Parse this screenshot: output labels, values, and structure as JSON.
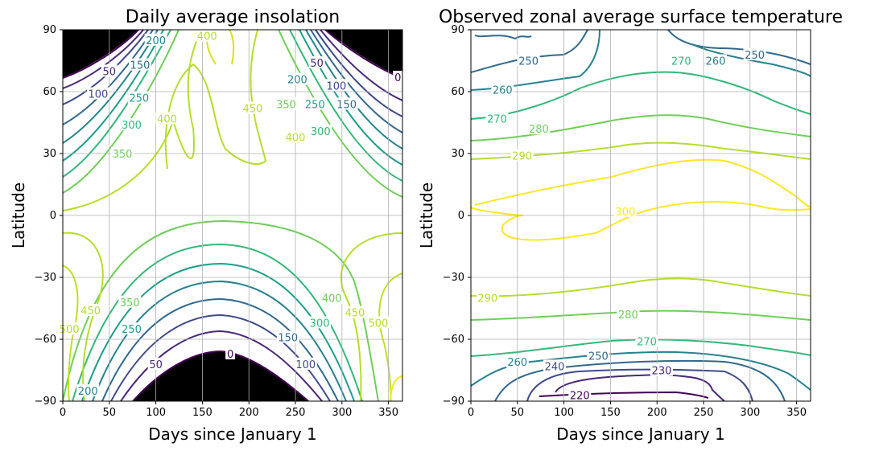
{
  "chart_data": [
    {
      "type": "contour",
      "title": "Daily average insolation",
      "xlabel": "Days since January 1",
      "ylabel": "Latitude",
      "xlim": [
        0,
        365
      ],
      "ylim": [
        -90,
        90
      ],
      "xticks": [
        "0",
        "50",
        "100",
        "150",
        "200",
        "250",
        "300",
        "350"
      ],
      "yticks": [
        "90",
        "60",
        "30",
        "0",
        "−30",
        "−60",
        "−90"
      ],
      "grid": true,
      "polar_night_fill": "#000000",
      "colormap": "viridis",
      "levels": [
        0,
        50,
        100,
        150,
        200,
        250,
        300,
        350,
        400,
        450,
        500
      ],
      "contour_labels": [
        {
          "text": "0",
          "x": 360,
          "y": 67,
          "color": "#440154"
        },
        {
          "text": "50",
          "x": 50,
          "y": 70,
          "color": "#482878"
        },
        {
          "text": "100",
          "x": 38,
          "y": 59,
          "color": "#3e4989"
        },
        {
          "text": "150",
          "x": 83,
          "y": 73,
          "color": "#31688e"
        },
        {
          "text": "200",
          "x": 100,
          "y": 85,
          "color": "#26828e"
        },
        {
          "text": "250",
          "x": 82,
          "y": 57,
          "color": "#1f9e89"
        },
        {
          "text": "300",
          "x": 74,
          "y": 44,
          "color": "#35b779"
        },
        {
          "text": "350",
          "x": 64,
          "y": 30,
          "color": "#6ece58"
        },
        {
          "text": "400",
          "x": 112,
          "y": 47,
          "color": "#b5de2b"
        },
        {
          "text": "400",
          "x": 155,
          "y": 87,
          "color": "#b5de2b"
        },
        {
          "text": "450",
          "x": 204,
          "y": 52,
          "color": "#b5de2b"
        },
        {
          "text": "50",
          "x": 273,
          "y": 74,
          "color": "#482878"
        },
        {
          "text": "100",
          "x": 294,
          "y": 63,
          "color": "#3e4989"
        },
        {
          "text": "150",
          "x": 305,
          "y": 54,
          "color": "#31688e"
        },
        {
          "text": "200",
          "x": 252,
          "y": 66,
          "color": "#26828e"
        },
        {
          "text": "250",
          "x": 271,
          "y": 54,
          "color": "#1f9e89"
        },
        {
          "text": "300",
          "x": 277,
          "y": 41,
          "color": "#35b779"
        },
        {
          "text": "350",
          "x": 240,
          "y": 54,
          "color": "#6ece58"
        },
        {
          "text": "400",
          "x": 250,
          "y": 38,
          "color": "#b5de2b"
        },
        {
          "text": "500",
          "x": 7,
          "y": -55,
          "color": "#b5de2b"
        },
        {
          "text": "450",
          "x": 30,
          "y": -46,
          "color": "#b5de2b"
        },
        {
          "text": "350",
          "x": 72,
          "y": -42,
          "color": "#6ece58"
        },
        {
          "text": "250",
          "x": 74,
          "y": -55,
          "color": "#1f9e89"
        },
        {
          "text": "50",
          "x": 100,
          "y": -72,
          "color": "#482878"
        },
        {
          "text": "0",
          "x": 180,
          "y": -67,
          "color": "#440154"
        },
        {
          "text": "200",
          "x": 27,
          "y": -85,
          "color": "#26828e"
        },
        {
          "text": "400",
          "x": 289,
          "y": -40,
          "color": "#6ece58"
        },
        {
          "text": "450",
          "x": 314,
          "y": -47,
          "color": "#b5de2b"
        },
        {
          "text": "500",
          "x": 339,
          "y": -52,
          "color": "#b5de2b"
        },
        {
          "text": "300",
          "x": 276,
          "y": -52,
          "color": "#35b779"
        },
        {
          "text": "150",
          "x": 242,
          "y": -59,
          "color": "#31688e"
        },
        {
          "text": "100",
          "x": 261,
          "y": -72,
          "color": "#3e4989"
        }
      ]
    },
    {
      "type": "contour",
      "title": "Observed zonal average surface temperature",
      "xlabel": "Days since January 1",
      "ylabel": "Latitude",
      "xlim": [
        0,
        365
      ],
      "ylim": [
        -90,
        90
      ],
      "xticks": [
        "0",
        "50",
        "100",
        "150",
        "200",
        "250",
        "300",
        "350"
      ],
      "yticks": [
        "90",
        "60",
        "30",
        "0",
        "−30",
        "−60",
        "−90"
      ],
      "grid": true,
      "colormap": "viridis",
      "levels": [
        220,
        230,
        240,
        250,
        260,
        270,
        280,
        290,
        300
      ],
      "contour_labels": [
        {
          "text": "250",
          "x": 62,
          "y": 75,
          "color": "#31688e"
        },
        {
          "text": "270",
          "x": 226,
          "y": 75,
          "color": "#35b779"
        },
        {
          "text": "260",
          "x": 263,
          "y": 75,
          "color": "#26828e"
        },
        {
          "text": "250",
          "x": 305,
          "y": 78,
          "color": "#31688e"
        },
        {
          "text": "260",
          "x": 34,
          "y": 61,
          "color": "#26828e"
        },
        {
          "text": "270",
          "x": 28,
          "y": 47,
          "color": "#35b779"
        },
        {
          "text": "280",
          "x": 73,
          "y": 42,
          "color": "#6ece58"
        },
        {
          "text": "290",
          "x": 55,
          "y": 29,
          "color": "#b5de2b"
        },
        {
          "text": "300",
          "x": 166,
          "y": 2,
          "color": "#fde725"
        },
        {
          "text": "290",
          "x": 18,
          "y": -40,
          "color": "#b5de2b"
        },
        {
          "text": "280",
          "x": 169,
          "y": -48,
          "color": "#6ece58"
        },
        {
          "text": "270",
          "x": 189,
          "y": -61,
          "color": "#35b779"
        },
        {
          "text": "260",
          "x": 50,
          "y": -71,
          "color": "#26828e"
        },
        {
          "text": "250",
          "x": 137,
          "y": -68,
          "color": "#31688e"
        },
        {
          "text": "240",
          "x": 90,
          "y": -73,
          "color": "#3e4989"
        },
        {
          "text": "230",
          "x": 205,
          "y": -75,
          "color": "#482878"
        },
        {
          "text": "220",
          "x": 117,
          "y": -87,
          "color": "#440154"
        }
      ]
    }
  ]
}
